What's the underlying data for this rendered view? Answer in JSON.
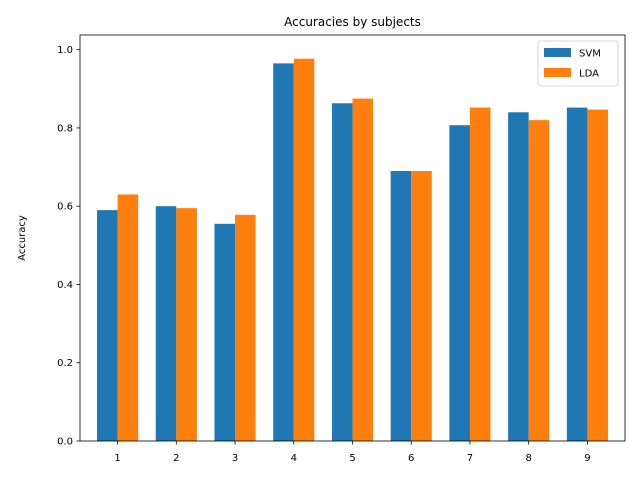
{
  "chart_data": {
    "type": "bar",
    "title": "Accuracies by subjects",
    "xlabel": "",
    "ylabel": "Accuracy",
    "categories": [
      "1",
      "2",
      "3",
      "4",
      "5",
      "6",
      "7",
      "8",
      "9"
    ],
    "series": [
      {
        "name": "SVM",
        "color": "#1f77b4",
        "values": [
          0.59,
          0.6,
          0.555,
          0.965,
          0.863,
          0.69,
          0.807,
          0.84,
          0.852
        ]
      },
      {
        "name": "LDA",
        "color": "#ff7f0e",
        "values": [
          0.63,
          0.595,
          0.578,
          0.977,
          0.875,
          0.69,
          0.852,
          0.82,
          0.847
        ]
      }
    ],
    "ylim": [
      0,
      1.0375
    ],
    "yticks": [
      "0.0",
      "0.2",
      "0.4",
      "0.6",
      "0.8",
      "1.0"
    ],
    "grid": false,
    "legend_position": "top-right"
  }
}
